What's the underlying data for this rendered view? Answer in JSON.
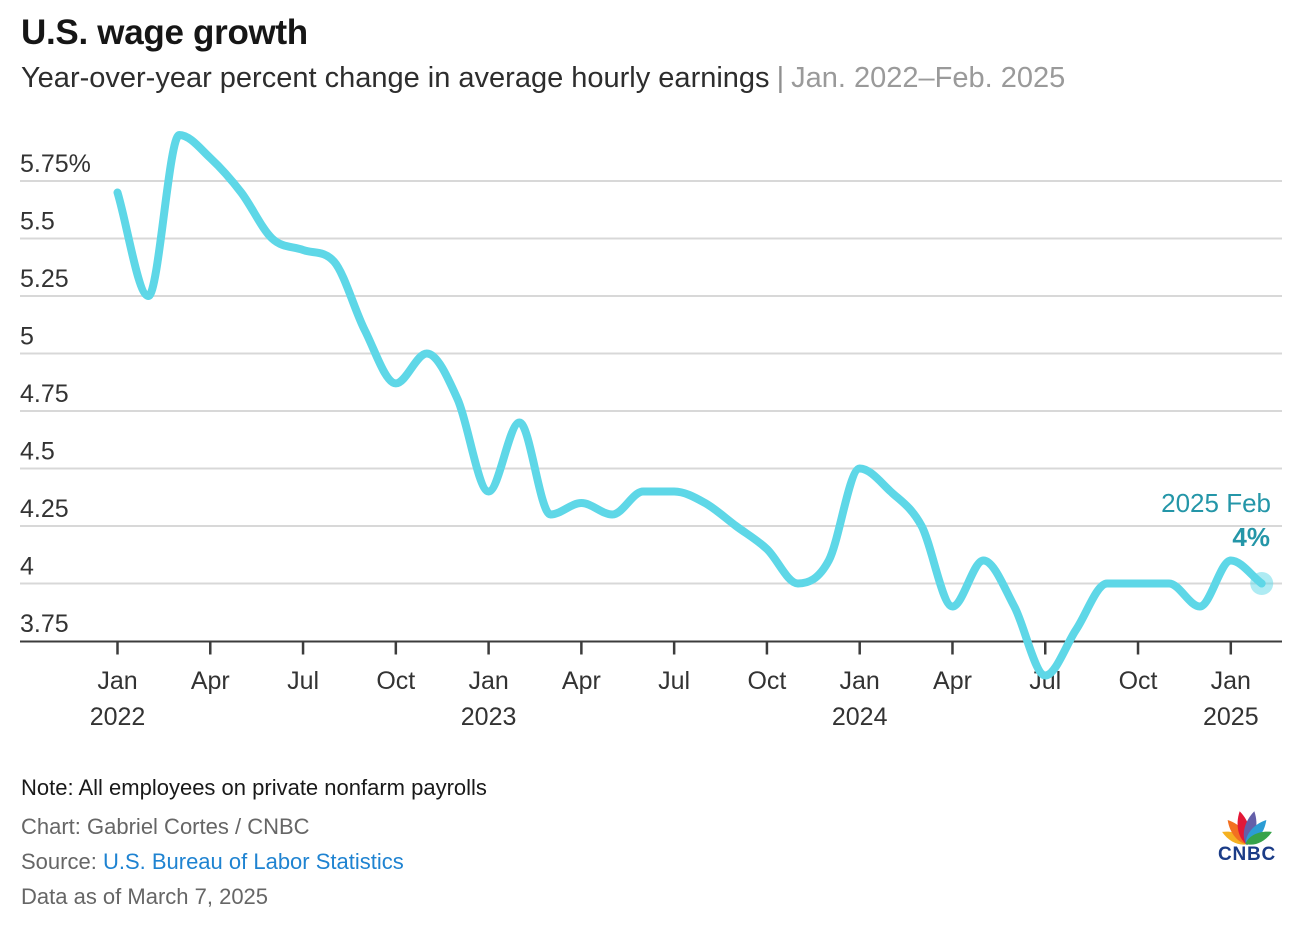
{
  "header": {
    "title": "U.S. wage growth",
    "subtitle_main": "Year-over-year percent change in average hourly earnings",
    "subtitle_separator": "|",
    "subtitle_range": "Jan. 2022–Feb. 2025"
  },
  "chart_data": {
    "type": "line",
    "title": "U.S. wage growth",
    "series_name": "Year-over-year % change in average hourly earnings",
    "unit": "%",
    "grid": true,
    "legend": false,
    "line_color": "#5ed7e7",
    "x": [
      "Jan 2022",
      "Feb 2022",
      "Mar 2022",
      "Apr 2022",
      "May 2022",
      "Jun 2022",
      "Jul 2022",
      "Aug 2022",
      "Sep 2022",
      "Oct 2022",
      "Nov 2022",
      "Dec 2022",
      "Jan 2023",
      "Feb 2023",
      "Mar 2023",
      "Apr 2023",
      "May 2023",
      "Jun 2023",
      "Jul 2023",
      "Aug 2023",
      "Sep 2023",
      "Oct 2023",
      "Nov 2023",
      "Dec 2023",
      "Jan 2024",
      "Feb 2024",
      "Mar 2024",
      "Apr 2024",
      "May 2024",
      "Jun 2024",
      "Jul 2024",
      "Aug 2024",
      "Sep 2024",
      "Oct 2024",
      "Nov 2024",
      "Dec 2024",
      "Jan 2025",
      "Feb 2025"
    ],
    "values": [
      5.7,
      5.25,
      5.95,
      5.85,
      5.7,
      5.5,
      5.45,
      5.4,
      5.1,
      4.87,
      5.0,
      4.8,
      4.4,
      4.7,
      4.3,
      4.35,
      4.3,
      4.4,
      4.4,
      4.35,
      4.25,
      4.15,
      4.0,
      4.1,
      4.5,
      4.4,
      4.25,
      3.9,
      4.1,
      3.9,
      3.6,
      3.8,
      4.0,
      4.0,
      4.0,
      3.9,
      4.1,
      4.0
    ],
    "ylim": [
      3.75,
      5.95
    ],
    "y_ticks": [
      {
        "value": 5.75,
        "label": "5.75%"
      },
      {
        "value": 5.5,
        "label": "5.5"
      },
      {
        "value": 5.25,
        "label": "5.25"
      },
      {
        "value": 5.0,
        "label": "5"
      },
      {
        "value": 4.75,
        "label": "4.75"
      },
      {
        "value": 4.5,
        "label": "4.5"
      },
      {
        "value": 4.25,
        "label": "4.25"
      },
      {
        "value": 4.0,
        "label": "4"
      },
      {
        "value": 3.75,
        "label": "3.75"
      }
    ],
    "x_ticks": [
      {
        "m": 0,
        "label": "Jan",
        "year": "2022"
      },
      {
        "m": 3,
        "label": "Apr"
      },
      {
        "m": 6,
        "label": "Jul"
      },
      {
        "m": 9,
        "label": "Oct"
      },
      {
        "m": 12,
        "label": "Jan",
        "year": "2023"
      },
      {
        "m": 15,
        "label": "Apr"
      },
      {
        "m": 18,
        "label": "Jul"
      },
      {
        "m": 21,
        "label": "Oct"
      },
      {
        "m": 24,
        "label": "Jan",
        "year": "2024"
      },
      {
        "m": 27,
        "label": "Apr"
      },
      {
        "m": 30,
        "label": "Jul"
      },
      {
        "m": 33,
        "label": "Oct"
      },
      {
        "m": 36,
        "label": "Jan",
        "year": "2025"
      }
    ],
    "annotation": {
      "line1": "2025 Feb",
      "line2": "4%",
      "color": "#2496a8"
    },
    "last_point": {
      "x": "Feb 2025",
      "value": 4.0
    }
  },
  "footer": {
    "note": "Note: All employees on private nonfarm payrolls",
    "credit": "Chart: Gabriel Cortes / CNBC",
    "source_label": "Source: ",
    "source_link": "U.S. Bureau of Labor Statistics",
    "data_as_of": "Data as of March 7, 2025"
  },
  "logo": {
    "wordmark": "CNBC",
    "wordmark_color": "#1b3c87",
    "feather_colors": [
      "#f5b121",
      "#f37021",
      "#e31837",
      "#645fa9",
      "#2c9cd4",
      "#37a34a"
    ]
  }
}
